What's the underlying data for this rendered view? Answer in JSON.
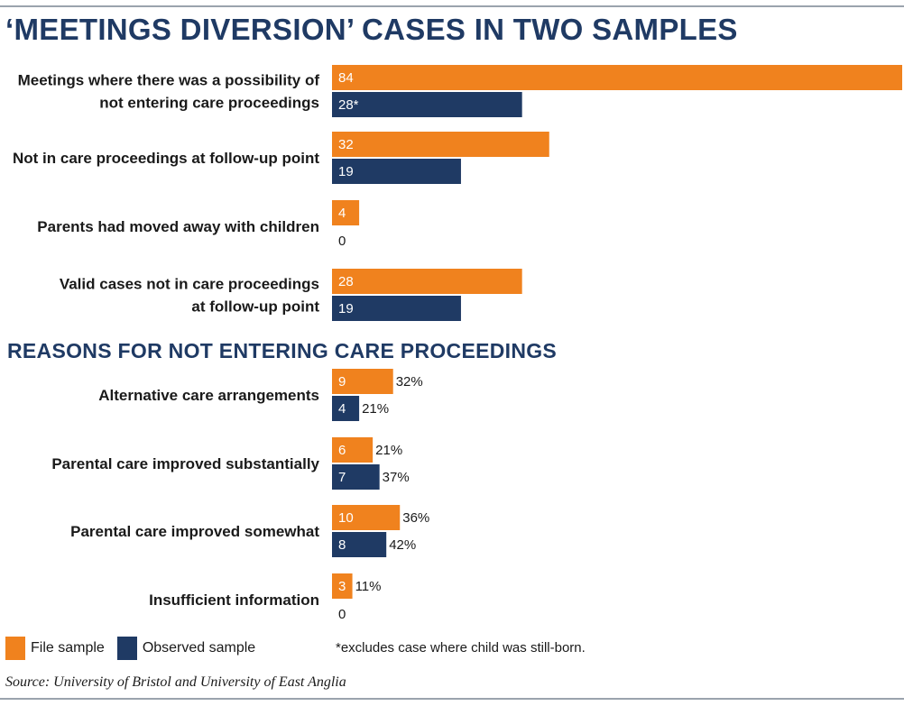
{
  "chart_data": {
    "type": "bar",
    "orientation": "horizontal",
    "title": "‘MEETINGS DIVERSION’ CASES IN TWO SAMPLES",
    "section_title": "REASONS FOR NOT ENTERING CARE PROCEEDINGS",
    "series": [
      {
        "name": "File sample",
        "color": "#f0821e"
      },
      {
        "name": "Observed sample",
        "color": "#1f3a64"
      }
    ],
    "groups": [
      {
        "section": 1,
        "label_lines": [
          "Meetings where there was a possibility of",
          "not entering care proceedings"
        ],
        "values": [
          84,
          28
        ],
        "value_labels": [
          "84",
          "28*"
        ],
        "pct_labels": [
          "",
          ""
        ]
      },
      {
        "section": 1,
        "label_lines": [
          "Not in care proceedings at follow-up point"
        ],
        "values": [
          32,
          19
        ],
        "value_labels": [
          "32",
          "19"
        ],
        "pct_labels": [
          "",
          ""
        ]
      },
      {
        "section": 1,
        "label_lines": [
          "Parents had moved away with children"
        ],
        "values": [
          4,
          0
        ],
        "value_labels": [
          "4",
          "0"
        ],
        "pct_labels": [
          "",
          ""
        ]
      },
      {
        "section": 1,
        "label_lines": [
          "Valid cases not in care proceedings",
          "at follow-up point"
        ],
        "values": [
          28,
          19
        ],
        "value_labels": [
          "28",
          "19"
        ],
        "pct_labels": [
          "",
          ""
        ]
      },
      {
        "section": 2,
        "label_lines": [
          "Alternative care arrangements"
        ],
        "values": [
          9,
          4
        ],
        "value_labels": [
          "9",
          "4"
        ],
        "pct_labels": [
          "32%",
          "21%"
        ]
      },
      {
        "section": 2,
        "label_lines": [
          "Parental care improved substantially"
        ],
        "values": [
          6,
          7
        ],
        "value_labels": [
          "6",
          "7"
        ],
        "pct_labels": [
          "21%",
          "37%"
        ]
      },
      {
        "section": 2,
        "label_lines": [
          "Parental care improved somewhat"
        ],
        "values": [
          10,
          8
        ],
        "value_labels": [
          "10",
          "8"
        ],
        "pct_labels": [
          "36%",
          "42%"
        ]
      },
      {
        "section": 2,
        "label_lines": [
          "Insufficient information"
        ],
        "values": [
          3,
          0
        ],
        "value_labels": [
          "3",
          "0"
        ],
        "pct_labels": [
          "11%",
          ""
        ]
      }
    ],
    "xlim": [
      0,
      84
    ],
    "grid": false,
    "legend_position": "bottom-left"
  },
  "footnote": "*excludes case where child was still-born.",
  "source": "Source: University of Bristol and University of East Anglia"
}
